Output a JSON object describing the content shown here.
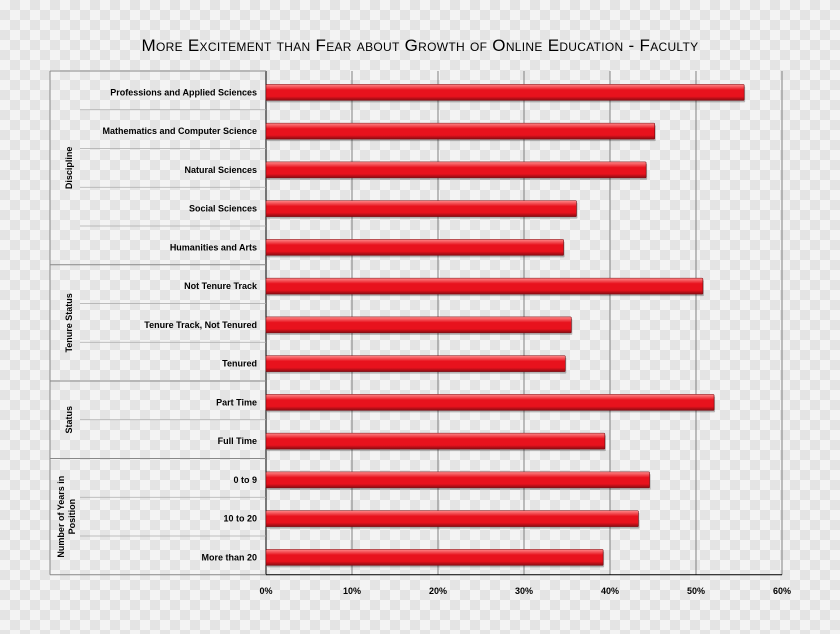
{
  "chart_data": {
    "type": "bar",
    "orientation": "horizontal",
    "title": "More Excitement than Fear about Growth of Online Education - Faculty",
    "groups": [
      {
        "name": "Discipline",
        "categories": [
          "Professions and Applied Sciences",
          "Mathematics and Computer Science",
          "Natural Sciences",
          "Social Sciences",
          "Humanities and Arts"
        ],
        "values": [
          55.6,
          45.2,
          44.2,
          36.1,
          34.6
        ]
      },
      {
        "name": "Tenure Status",
        "categories": [
          "Not Tenure Track",
          "Tenure Track, Not Tenured",
          "Tenured"
        ],
        "values": [
          50.8,
          35.5,
          34.8
        ]
      },
      {
        "name": "Status",
        "categories": [
          "Part Time",
          "Full Time"
        ],
        "values": [
          52.1,
          39.4
        ]
      },
      {
        "name": "Number of Years in Position",
        "categories": [
          "0 to 9",
          "10 to 20",
          "More than 20"
        ],
        "values": [
          44.6,
          43.3,
          39.2
        ]
      }
    ],
    "xlim": [
      0,
      60
    ],
    "xticks": [
      "0%",
      "10%",
      "20%",
      "30%",
      "40%",
      "50%",
      "60%"
    ],
    "grid": true,
    "legend": "none",
    "colors": {
      "bar": "#e8121d",
      "bar_highlight": "#ff8a8a",
      "bar_shadow": "#8a0c12"
    }
  }
}
